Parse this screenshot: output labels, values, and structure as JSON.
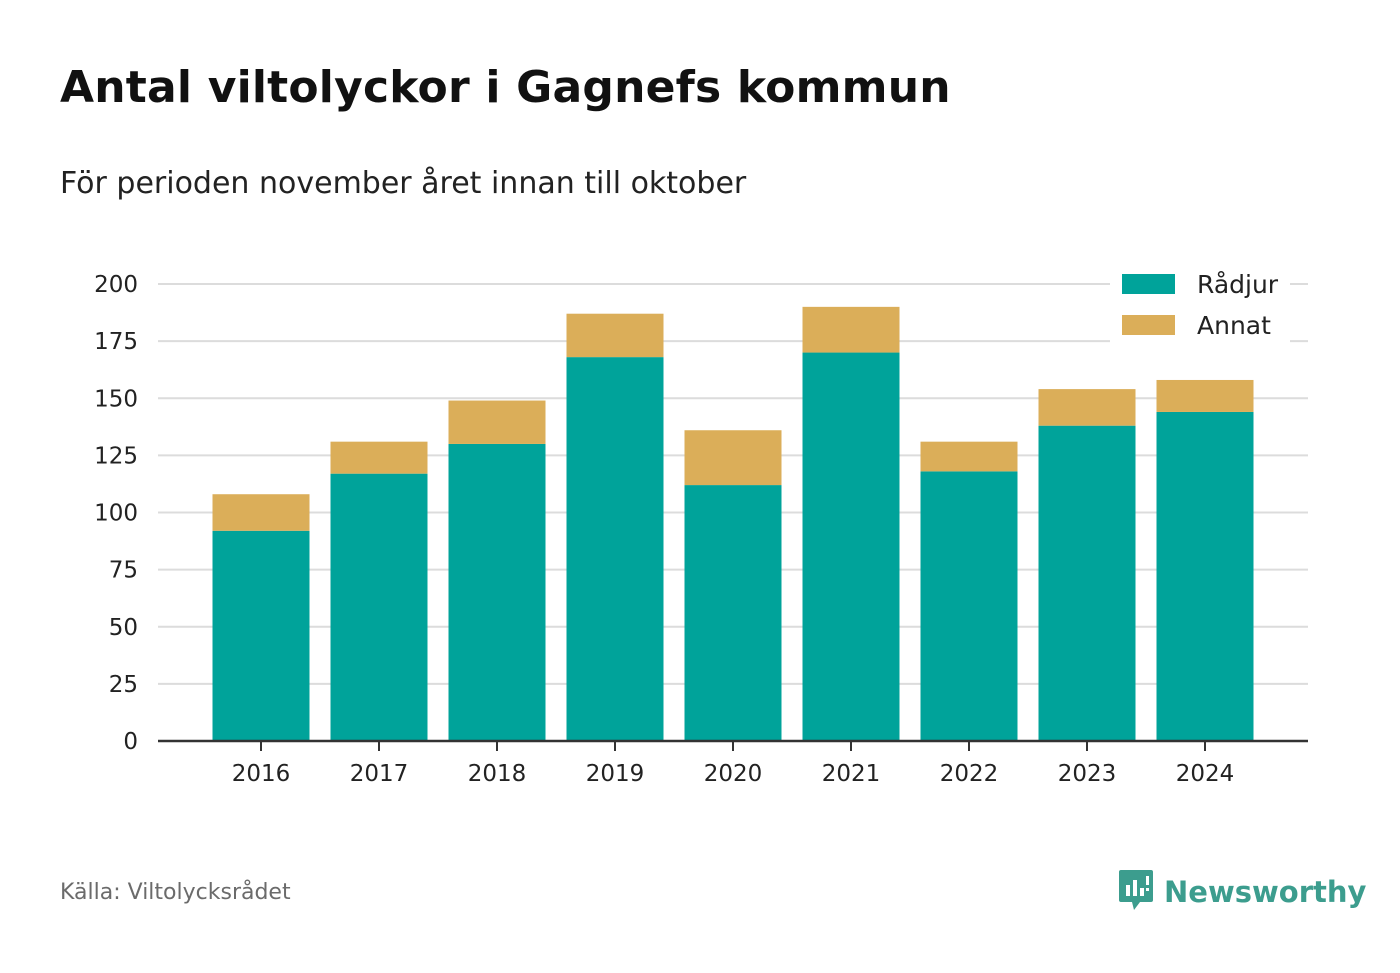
{
  "title": "Antal viltolyckor i Gagnefs kommun",
  "subtitle": "För perioden november året innan till oktober",
  "source": "Källa: Viltolycksrådet",
  "brand": {
    "name": "Newsworthy",
    "icon": "newsworthy-logo-icon",
    "color": "#3c9d8e"
  },
  "chart_data": {
    "type": "bar",
    "stacked": true,
    "title": "Antal viltolyckor i Gagnefs kommun",
    "subtitle": "För perioden november året innan till oktober",
    "xlabel": "",
    "ylabel": "",
    "categories": [
      "2016",
      "2017",
      "2018",
      "2019",
      "2020",
      "2021",
      "2022",
      "2023",
      "2024"
    ],
    "series": [
      {
        "name": "Rådjur",
        "color": "#00a39a",
        "values": [
          92,
          117,
          130,
          168,
          112,
          170,
          118,
          138,
          144
        ]
      },
      {
        "name": "Annat",
        "color": "#dbae59",
        "values": [
          16,
          14,
          19,
          19,
          24,
          20,
          13,
          16,
          14
        ]
      }
    ],
    "ylim": [
      0,
      200
    ],
    "yticks": [
      0,
      25,
      50,
      75,
      100,
      125,
      150,
      175,
      200
    ],
    "grid": true,
    "legend": "top-right"
  }
}
